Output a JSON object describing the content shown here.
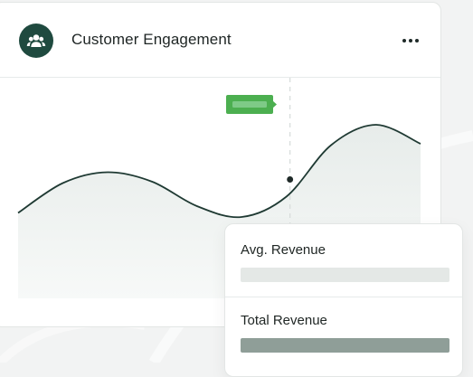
{
  "card": {
    "title": "Customer Engagement",
    "avatar_icon": "users-icon",
    "menu_icon": "more-horizontal-icon"
  },
  "chart_data": {
    "type": "area",
    "series": [
      {
        "values": [
          35,
          57,
          65,
          58,
          40,
          32,
          47,
          85,
          100,
          86
        ]
      }
    ],
    "highlight_index": 6,
    "marker_badge": "",
    "grid": false,
    "xlabel": "",
    "ylabel": ""
  },
  "tooltip": {
    "metrics": [
      {
        "label": "Avg. Revenue",
        "bar_color": "#e4e8e6"
      },
      {
        "label": "Total Revenue",
        "bar_color": "#8f9e98"
      }
    ]
  },
  "colors": {
    "brand": "#1f4a3f",
    "line": "#1f3a33",
    "marker": "#4caf50",
    "area": "#eef2f0"
  }
}
